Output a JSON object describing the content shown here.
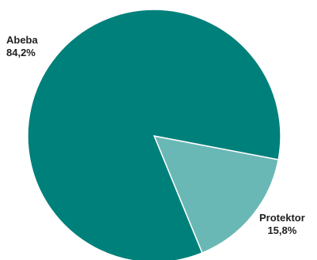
{
  "chart_data": {
    "type": "pie",
    "title": "",
    "slices": [
      {
        "label": "Abeba",
        "value": 84.2,
        "value_label": "84,2%",
        "color": "#00807b"
      },
      {
        "label": "Protektor",
        "value": 15.8,
        "value_label": "15,8%",
        "color": "#6ab8b5"
      }
    ],
    "legend": "none",
    "start_direction": "right, proceeding clockwise from the Protektor slice"
  }
}
